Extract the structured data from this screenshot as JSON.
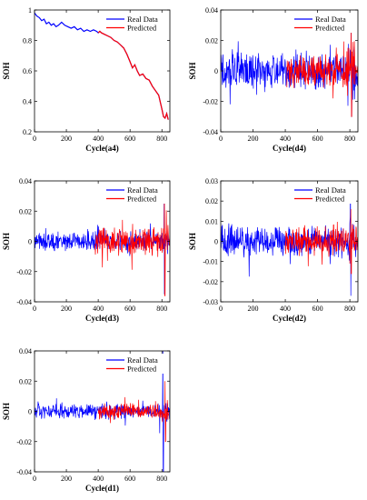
{
  "colors": {
    "real": "#0000ff",
    "predicted": "#ff0000"
  },
  "chart_data": [
    {
      "id": "a4",
      "type": "line",
      "xlabel": "Cycle(a4)",
      "ylabel": "SOH",
      "xlim": [
        0,
        850
      ],
      "ylim": [
        0.2,
        1.0
      ],
      "xticks": [
        0,
        200,
        400,
        600,
        800
      ],
      "yticks": [
        0.2,
        0.4,
        0.6,
        0.8,
        1.0
      ],
      "ytick_labels": [
        "0.2",
        "0.4",
        "0.6",
        "0.8",
        "1"
      ],
      "legend": [
        "Real Data",
        "Predicted"
      ],
      "legend_position": "top-right",
      "series": [
        {
          "name": "Real Data",
          "color": "#0000ff",
          "x": [
            0,
            15,
            30,
            45,
            60,
            75,
            90,
            105,
            120,
            135,
            150,
            170,
            190,
            210,
            230,
            250,
            270,
            290,
            310,
            330,
            350,
            370,
            390,
            400,
            410,
            420,
            440,
            460,
            480,
            500,
            520,
            540,
            560,
            580,
            600,
            615,
            630,
            645,
            660,
            680,
            700,
            720,
            740,
            760,
            780,
            800,
            810,
            820,
            830,
            840
          ],
          "y": [
            0.98,
            0.96,
            0.95,
            0.93,
            0.94,
            0.91,
            0.92,
            0.9,
            0.91,
            0.89,
            0.9,
            0.92,
            0.9,
            0.89,
            0.88,
            0.89,
            0.87,
            0.88,
            0.86,
            0.87,
            0.86,
            0.87,
            0.86,
            0.85,
            0.86,
            0.85,
            0.84,
            0.83,
            0.82,
            0.8,
            0.79,
            0.77,
            0.75,
            0.71,
            0.66,
            0.62,
            0.64,
            0.6,
            0.57,
            0.58,
            0.55,
            0.54,
            0.5,
            0.47,
            0.44,
            0.35,
            0.3,
            0.29,
            0.32,
            0.28
          ]
        },
        {
          "name": "Predicted",
          "color": "#ff0000",
          "x": [
            400,
            410,
            420,
            440,
            460,
            480,
            500,
            520,
            540,
            560,
            580,
            600,
            615,
            630,
            645,
            660,
            680,
            700,
            720,
            740,
            760,
            780,
            800,
            810,
            820,
            830,
            840
          ],
          "y": [
            0.85,
            0.86,
            0.85,
            0.84,
            0.83,
            0.82,
            0.8,
            0.79,
            0.77,
            0.75,
            0.71,
            0.66,
            0.62,
            0.64,
            0.6,
            0.57,
            0.58,
            0.55,
            0.54,
            0.5,
            0.47,
            0.44,
            0.35,
            0.3,
            0.29,
            0.32,
            0.28
          ]
        }
      ]
    },
    {
      "id": "d4",
      "type": "line",
      "xlabel": "Cycle(d4)",
      "ylabel": "SOH",
      "xlim": [
        0,
        850
      ],
      "ylim": [
        -0.04,
        0.04
      ],
      "xticks": [
        0,
        200,
        400,
        600,
        800
      ],
      "yticks": [
        -0.04,
        -0.02,
        0,
        0.02,
        0.04
      ],
      "ytick_labels": [
        "-0.04",
        "-0.02",
        "0",
        "0.02",
        "0.04"
      ],
      "legend": [
        "Real Data",
        "Predicted"
      ],
      "legend_position": "top-right",
      "series": [
        {
          "name": "Real Data",
          "color": "#0000ff",
          "x_range": [
            0,
            850
          ],
          "amplitude": 0.01,
          "spike": 0.03,
          "spike_at": 810
        },
        {
          "name": "Predicted",
          "color": "#ff0000",
          "x_range": [
            410,
            850
          ],
          "amplitude": 0.008,
          "spike": 0.03,
          "spike_at": 810
        }
      ]
    },
    {
      "id": "d3",
      "type": "line",
      "xlabel": "Cycle(d3)",
      "ylabel": "SOH",
      "xlim": [
        0,
        850
      ],
      "ylim": [
        -0.04,
        0.04
      ],
      "xticks": [
        0,
        200,
        400,
        600,
        800
      ],
      "yticks": [
        -0.04,
        -0.02,
        0,
        0.02,
        0.04
      ],
      "ytick_labels": [
        "-0.04",
        "-0.02",
        "0",
        "0.02",
        "0.04"
      ],
      "legend": [
        "Real Data",
        "Predicted"
      ],
      "legend_position": "top-right",
      "series": [
        {
          "name": "Real Data",
          "color": "#0000ff",
          "x_range": [
            0,
            850
          ],
          "amplitude": 0.005,
          "spike": 0.035,
          "spike_at": 815
        },
        {
          "name": "Predicted",
          "color": "#ff0000",
          "x_range": [
            380,
            850
          ],
          "amplitude": 0.007,
          "spike": 0.036,
          "spike_at": 818
        }
      ]
    },
    {
      "id": "d2",
      "type": "line",
      "xlabel": "Cycle(d2)",
      "ylabel": "SOH",
      "xlim": [
        0,
        850
      ],
      "ylim": [
        -0.03,
        0.03
      ],
      "xticks": [
        0,
        200,
        400,
        600,
        800
      ],
      "yticks": [
        -0.03,
        -0.02,
        -0.01,
        0,
        0.01,
        0.02,
        0.03
      ],
      "ytick_labels": [
        "-0.03",
        "-0.02",
        "-0.01",
        "0",
        "0.01",
        "0.02",
        "0.03"
      ],
      "legend": [
        "Real Data",
        "Predicted"
      ],
      "legend_position": "top-right",
      "series": [
        {
          "name": "Real Data",
          "color": "#0000ff",
          "x_range": [
            0,
            850
          ],
          "amplitude": 0.006,
          "spike": 0.027,
          "spike_at": 805
        },
        {
          "name": "Predicted",
          "color": "#ff0000",
          "x_range": [
            400,
            850
          ],
          "amplitude": 0.006,
          "spike": 0.016,
          "spike_at": 808
        }
      ]
    },
    {
      "id": "d1",
      "type": "line",
      "xlabel": "Cycle(d1)",
      "ylabel": "SOH",
      "xlim": [
        0,
        850
      ],
      "ylim": [
        -0.04,
        0.04
      ],
      "xticks": [
        0,
        200,
        400,
        600,
        800
      ],
      "yticks": [
        -0.04,
        -0.02,
        0,
        0.02,
        0.04
      ],
      "ytick_labels": [
        "-0.04",
        "-0.02",
        "0",
        "0.02",
        "0.04"
      ],
      "legend": [
        "Real Data",
        "Predicted"
      ],
      "legend_position": "top-right",
      "series": [
        {
          "name": "Real Data",
          "color": "#0000ff",
          "x_range": [
            0,
            850
          ],
          "amplitude": 0.004,
          "spike": 0.04,
          "spike_at": 808
        },
        {
          "name": "Predicted",
          "color": "#ff0000",
          "x_range": [
            400,
            850
          ],
          "amplitude": 0.004,
          "spike": 0.02,
          "spike_at": 822
        }
      ]
    }
  ]
}
